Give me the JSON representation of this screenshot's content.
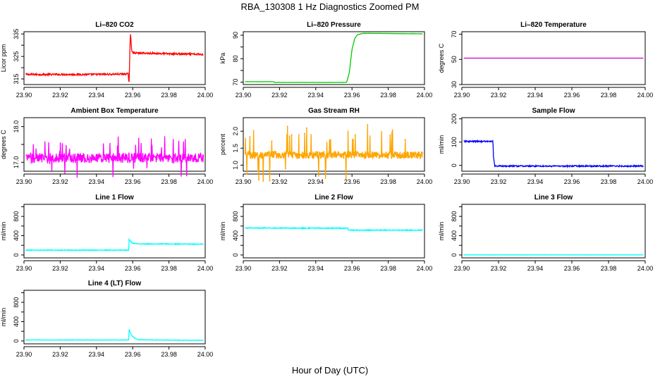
{
  "figure": {
    "title": "RBA_130308  1 Hz Diagnostics Zoomed PM",
    "xlabel": "Hour of Day (UTC)"
  },
  "chart_data": [
    {
      "id": "co2",
      "type": "line",
      "title": "Li–820 CO2",
      "ylabel": "Licor ppm",
      "color": "#ff0000",
      "xlim": [
        23.9,
        24.0
      ],
      "ylim": [
        312.5,
        336.0
      ],
      "yticks": [
        315,
        320,
        325,
        330,
        335
      ],
      "yticklabels": [
        "315",
        "",
        "325",
        "",
        "335"
      ],
      "xticks": [
        23.9,
        23.92,
        23.94,
        23.96,
        23.98,
        24.0
      ],
      "xticklabels": [
        "23.90",
        "23.92",
        "23.94",
        "23.96",
        "23.98",
        "24.00"
      ],
      "series": [
        {
          "name": "CO2",
          "x": [
            23.901,
            23.92,
            23.94,
            23.9575,
            23.958,
            23.9587,
            23.9595,
            23.9605,
            23.963,
            23.97,
            23.98,
            23.999
          ],
          "y": [
            317.0,
            317.0,
            317.0,
            317.2,
            312.8,
            335.5,
            327.5,
            326.6,
            326.5,
            326.4,
            326.2,
            325.9
          ],
          "noise": 0.4
        }
      ]
    },
    {
      "id": "pressure",
      "type": "line",
      "title": "Li–820 Pressure",
      "ylabel": "kPa",
      "color": "#00cc00",
      "xlim": [
        23.9,
        24.0
      ],
      "ylim": [
        69.0,
        91.5
      ],
      "yticks": [
        70,
        75,
        80,
        85,
        90
      ],
      "yticklabels": [
        "70",
        "",
        "80",
        "",
        "90"
      ],
      "xticks": [
        23.9,
        23.92,
        23.94,
        23.96,
        23.98,
        24.0
      ],
      "xticklabels": [
        "23.90",
        "23.92",
        "23.94",
        "23.96",
        "23.98",
        "24.00"
      ],
      "series": [
        {
          "name": "Pressure",
          "x": [
            23.901,
            23.917,
            23.9172,
            23.957,
            23.9585,
            23.96,
            23.9615,
            23.963,
            23.966,
            23.97,
            23.999
          ],
          "y": [
            70.2,
            70.2,
            69.9,
            69.9,
            74.0,
            84.0,
            88.6,
            90.2,
            90.8,
            90.8,
            90.6
          ],
          "noise": 0.04
        }
      ]
    },
    {
      "id": "temperature",
      "type": "line",
      "title": "Li–820 Temperature",
      "ylabel": "degrees C",
      "color": "#cc00cc",
      "xlim": [
        23.9,
        24.0
      ],
      "ylim": [
        30.0,
        72.0
      ],
      "yticks": [
        30,
        50,
        70
      ],
      "yticklabels": [
        "30",
        "50",
        "70"
      ],
      "xticks": [
        23.9,
        23.92,
        23.94,
        23.96,
        23.98,
        24.0
      ],
      "xticklabels": [
        "23.90",
        "23.92",
        "23.94",
        "23.96",
        "23.98",
        "24.00"
      ],
      "series": [
        {
          "name": "Temperature",
          "x": [
            23.901,
            23.999
          ],
          "y": [
            51.0,
            51.0
          ],
          "noise": 0
        }
      ]
    },
    {
      "id": "ambient",
      "type": "line",
      "title": "Ambient Box Temperature",
      "ylabel": "degrees C",
      "color": "#ff00ff",
      "xlim": [
        23.9,
        24.0
      ],
      "ylim": [
        16.75,
        18.25
      ],
      "yticks": [
        17.0,
        17.5,
        18.0
      ],
      "yticklabels": [
        "17.0",
        "",
        "18.0"
      ],
      "xticks": [
        23.9,
        23.92,
        23.94,
        23.96,
        23.98,
        24.0
      ],
      "xticklabels": [
        "23.90",
        "23.92",
        "23.94",
        "23.96",
        "23.98",
        "24.00"
      ],
      "series": [
        {
          "name": "Ambient",
          "x": [
            23.901,
            23.95,
            23.999
          ],
          "y": [
            17.12,
            17.12,
            17.12
          ],
          "noise": 0.14,
          "spikes": [
            0.55,
            0.28
          ]
        }
      ]
    },
    {
      "id": "rh",
      "type": "line",
      "title": "Gas Stream RH",
      "ylabel": "percent",
      "color": "#ffa500",
      "xlim": [
        23.9,
        24.0
      ],
      "ylim": [
        0.82,
        2.4
      ],
      "yticks": [
        1.0,
        1.5,
        2.0
      ],
      "yticklabels": [
        "1.0",
        "1.5",
        "2.0"
      ],
      "xticks": [
        23.9,
        23.92,
        23.94,
        23.96,
        23.98,
        24.0
      ],
      "xticklabels": [
        "23.90",
        "23.92",
        "23.94",
        "23.96",
        "23.98",
        "24.00"
      ],
      "series": [
        {
          "name": "RH",
          "x": [
            23.901,
            23.95,
            23.999
          ],
          "y": [
            1.3,
            1.3,
            1.3
          ],
          "noise": 0.1,
          "spikes": [
            0.85,
            0.3
          ],
          "markers": true
        }
      ]
    },
    {
      "id": "sampleflow",
      "type": "line",
      "title": "Sample Flow",
      "ylabel": "ml/min",
      "color": "#0000ff",
      "xlim": [
        23.9,
        24.0
      ],
      "ylim": [
        -25.0,
        205.0
      ],
      "yticks": [
        0,
        100,
        200
      ],
      "yticklabels": [
        "0",
        "100",
        "200"
      ],
      "xticks": [
        23.9,
        23.92,
        23.94,
        23.96,
        23.98,
        24.0
      ],
      "xticklabels": [
        "23.90",
        "23.92",
        "23.94",
        "23.96",
        "23.98",
        "24.00"
      ],
      "series": [
        {
          "name": "Sample Flow",
          "x": [
            23.901,
            23.917,
            23.9172,
            23.918,
            23.999
          ],
          "y": [
            103.0,
            103.0,
            40.0,
            -3.0,
            -3.0
          ],
          "noise": 3.0
        }
      ]
    },
    {
      "id": "line1",
      "type": "line",
      "title": "Line 1 Flow",
      "ylabel": "ml/min",
      "color": "#00ffff",
      "xlim": [
        23.9,
        24.0
      ],
      "ylim": [
        -60.0,
        1050.0
      ],
      "yticks": [
        0,
        200,
        400,
        600,
        800,
        1000
      ],
      "yticklabels": [
        "0",
        "",
        "400",
        "",
        "800",
        ""
      ],
      "xticks": [
        23.9,
        23.92,
        23.94,
        23.96,
        23.98,
        24.0
      ],
      "xticklabels": [
        "23.90",
        "23.92",
        "23.94",
        "23.96",
        "23.98",
        "24.00"
      ],
      "series": [
        {
          "name": "Line 1",
          "x": [
            23.901,
            23.9578,
            23.958,
            23.9588,
            23.96,
            23.965,
            23.999
          ],
          "y": [
            100.0,
            100.0,
            330.0,
            280.0,
            240.0,
            230.0,
            225.0
          ],
          "noise": 9
        }
      ]
    },
    {
      "id": "line2",
      "type": "line",
      "title": "Line 2 Flow",
      "ylabel": "ml/min",
      "color": "#00ffff",
      "xlim": [
        23.9,
        24.0
      ],
      "ylim": [
        -60.0,
        1050.0
      ],
      "yticks": [
        0,
        200,
        400,
        600,
        800,
        1000
      ],
      "yticklabels": [
        "0",
        "",
        "400",
        "",
        "800",
        ""
      ],
      "xticks": [
        23.9,
        23.92,
        23.94,
        23.96,
        23.98,
        24.0
      ],
      "xticklabels": [
        "23.90",
        "23.92",
        "23.94",
        "23.96",
        "23.98",
        "24.00"
      ],
      "series": [
        {
          "name": "Line 2",
          "x": [
            23.901,
            23.9578,
            23.958,
            23.999
          ],
          "y": [
            560.0,
            555.0,
            515.0,
            515.0
          ],
          "noise": 10
        }
      ]
    },
    {
      "id": "line3",
      "type": "line",
      "title": "Line 3 Flow",
      "ylabel": "ml/min",
      "color": "#00ffff",
      "xlim": [
        23.9,
        24.0
      ],
      "ylim": [
        -60.0,
        1050.0
      ],
      "yticks": [
        0,
        200,
        400,
        600,
        800,
        1000
      ],
      "yticklabels": [
        "0",
        "",
        "400",
        "",
        "800",
        ""
      ],
      "xticks": [
        23.9,
        23.92,
        23.94,
        23.96,
        23.98,
        24.0
      ],
      "xticklabels": [
        "23.90",
        "23.92",
        "23.94",
        "23.96",
        "23.98",
        "24.00"
      ],
      "series": [
        {
          "name": "Line 3",
          "x": [
            23.901,
            23.999
          ],
          "y": [
            2.0,
            2.0
          ],
          "noise": 2
        }
      ]
    },
    {
      "id": "line4",
      "type": "line",
      "title": "Line 4 (LT) Flow",
      "ylabel": "ml/min",
      "color": "#00ffff",
      "xlim": [
        23.9,
        24.0
      ],
      "ylim": [
        -60.0,
        1050.0
      ],
      "yticks": [
        0,
        200,
        400,
        600,
        800,
        1000
      ],
      "yticklabels": [
        "0",
        "",
        "400",
        "",
        "800",
        ""
      ],
      "xticks": [
        23.9,
        23.92,
        23.94,
        23.96,
        23.98,
        24.0
      ],
      "xticklabels": [
        "23.90",
        "23.92",
        "23.94",
        "23.96",
        "23.98",
        "24.00"
      ],
      "series": [
        {
          "name": "Line 4",
          "x": [
            23.901,
            23.9578,
            23.958,
            23.9585,
            23.9595,
            23.961,
            23.963,
            23.999
          ],
          "y": [
            20.0,
            20.0,
            240.0,
            190.0,
            110.0,
            60.0,
            25.0,
            12.0
          ],
          "noise": 5
        }
      ]
    }
  ]
}
